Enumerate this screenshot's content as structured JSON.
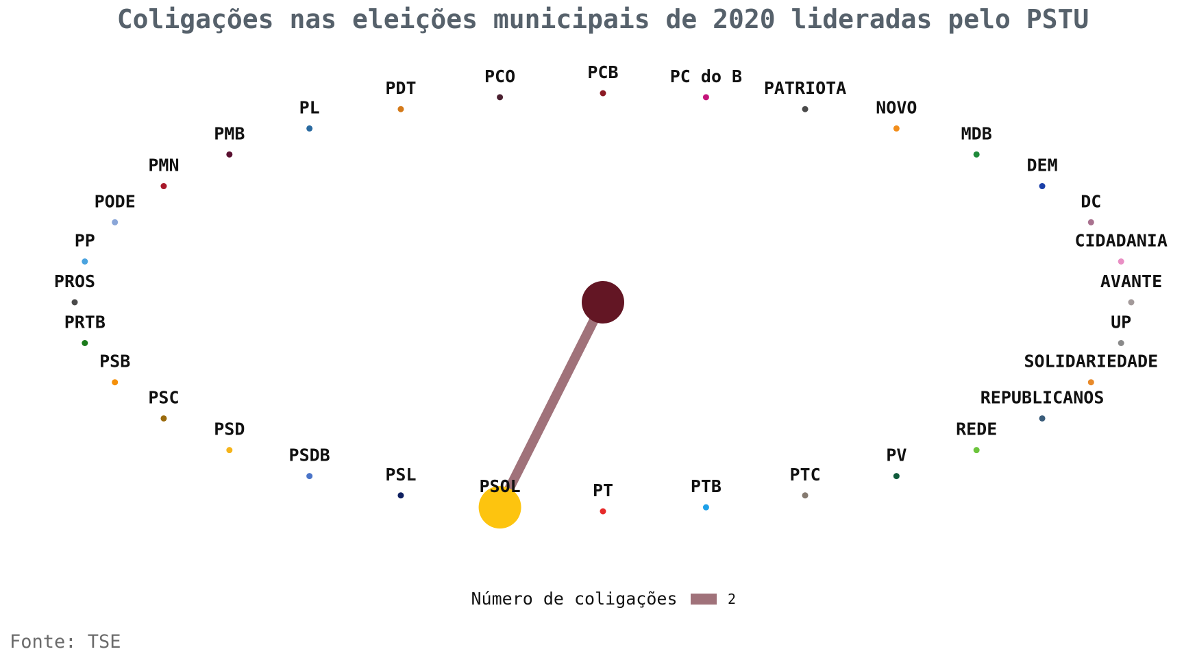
{
  "title": "Coligações nas eleições municipais de 2020 lideradas pelo PSTU",
  "source": "Fonte: TSE",
  "legend": {
    "title": "Número de coligações",
    "value": "2",
    "edge_color": "#a0727a"
  },
  "chart_data": {
    "type": "network",
    "layout": "circle",
    "nodes": [
      {
        "name": "PCB",
        "color": "#8b1a24"
      },
      {
        "name": "PC do B",
        "color": "#c4147a"
      },
      {
        "name": "PATRIOTA",
        "color": "#4a4a4a"
      },
      {
        "name": "NOVO",
        "color": "#f28e1c"
      },
      {
        "name": "MDB",
        "color": "#1f8a3a"
      },
      {
        "name": "DEM",
        "color": "#1a3fa8"
      },
      {
        "name": "DC",
        "color": "#a9728f"
      },
      {
        "name": "CIDADANIA",
        "color": "#e98fc4"
      },
      {
        "name": "AVANTE",
        "color": "#a39a9a"
      },
      {
        "name": "UP",
        "color": "#8a8a8a"
      },
      {
        "name": "SOLIDARIEDADE",
        "color": "#e88a2a"
      },
      {
        "name": "REPUBLICANOS",
        "color": "#3a5c7a"
      },
      {
        "name": "REDE",
        "color": "#6cc43c"
      },
      {
        "name": "PV",
        "color": "#0f5a3a"
      },
      {
        "name": "PTC",
        "color": "#857a70"
      },
      {
        "name": "PTB",
        "color": "#1ea0e8"
      },
      {
        "name": "PT",
        "color": "#e62a2a"
      },
      {
        "name": "PSOL",
        "color": "#fdc40f"
      },
      {
        "name": "PSL",
        "color": "#0f2060"
      },
      {
        "name": "PSDB",
        "color": "#4a74c8"
      },
      {
        "name": "PSD",
        "color": "#f5b41a"
      },
      {
        "name": "PSC",
        "color": "#9a6a0c"
      },
      {
        "name": "PSB",
        "color": "#f5900a"
      },
      {
        "name": "PRTB",
        "color": "#1a7a1a"
      },
      {
        "name": "PROS",
        "color": "#4a4a4a"
      },
      {
        "name": "PP",
        "color": "#4aa3df"
      },
      {
        "name": "PODE",
        "color": "#8aa6d8"
      },
      {
        "name": "PMN",
        "color": "#a8182a"
      },
      {
        "name": "PMB",
        "color": "#5a1030"
      },
      {
        "name": "PL",
        "color": "#2a6aa0"
      },
      {
        "name": "PDT",
        "color": "#d47a1a"
      },
      {
        "name": "PCO",
        "color": "#4a2030"
      }
    ],
    "leader": {
      "name": "PSTU",
      "color": "#631624"
    },
    "edges": [
      {
        "source": "PSTU",
        "target": "PSOL",
        "value": 2
      }
    ]
  }
}
